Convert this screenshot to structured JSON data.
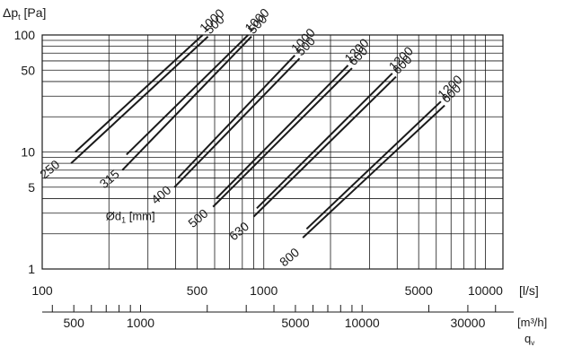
{
  "chart_data": {
    "type": "line",
    "x_scale": "log",
    "y_scale": "log",
    "xlim": [
      100,
      12000
    ],
    "ylim": [
      1,
      100
    ],
    "ylabel": "Δp",
    "ylabel_sub": "t",
    "ylabel_unit": " [Pa]",
    "xlabel": "[l/s]",
    "secondary_xlabel": "[m³/h]",
    "secondary_xsymbol": "q",
    "secondary_xsymbol_sub": "v",
    "x_ticks": [
      {
        "value": 100,
        "label": "100"
      },
      {
        "value": 500,
        "label": "500"
      },
      {
        "value": 1000,
        "label": "1000"
      },
      {
        "value": 5000,
        "label": "5000"
      },
      {
        "value": 10000,
        "label": "10000"
      }
    ],
    "y_ticks": [
      {
        "value": 1,
        "label": "1"
      },
      {
        "value": 5,
        "label": "5"
      },
      {
        "value": 10,
        "label": "10"
      },
      {
        "value": 50,
        "label": "50"
      },
      {
        "value": 100,
        "label": "100"
      }
    ],
    "secondary_x_ticks": [
      {
        "value": 500,
        "label": "500"
      },
      {
        "value": 1000,
        "label": "1000"
      },
      {
        "value": 5000,
        "label": "5000"
      },
      {
        "value": 10000,
        "label": "10000"
      },
      {
        "value": 30000,
        "label": "30000"
      }
    ],
    "secondary_minor_ticks": [
      400,
      600,
      700,
      800,
      900,
      2000,
      3000,
      4000,
      6000,
      7000,
      8000,
      9000,
      20000,
      40000
    ],
    "grid": true,
    "annotation": {
      "text": "Ød",
      "sub": "1",
      "suffix": " [mm]",
      "x": 440,
      "y": 2.8
    },
    "series": [
      {
        "name": "250",
        "label_x": 121,
        "label_y": 7.6,
        "lines": [
          {
            "label": "1000",
            "x": [
              141,
              530
            ],
            "y": [
              10,
              100
            ]
          },
          {
            "label": "500",
            "x": [
              135,
              560
            ],
            "y": [
              8,
              97
            ]
          }
        ]
      },
      {
        "name": "315",
        "label_x": 225,
        "label_y": 6.3,
        "lines": [
          {
            "label": "1000",
            "x": [
              240,
              850
            ],
            "y": [
              9.5,
              100
            ]
          },
          {
            "label": "500",
            "x": [
              230,
              880
            ],
            "y": [
              7,
              97
            ]
          }
        ]
      },
      {
        "name": "400",
        "label_x": 385,
        "label_y": 4.6,
        "lines": [
          {
            "label": "1000",
            "x": [
              410,
              1380
            ],
            "y": [
              6,
              67
            ]
          },
          {
            "label": "500",
            "x": [
              395,
              1450
            ],
            "y": [
              5,
              63
            ]
          }
        ]
      },
      {
        "name": "500",
        "label_x": 565,
        "label_y": 2.9,
        "lines": [
          {
            "label": "1200",
            "x": [
              610,
              2400
            ],
            "y": [
              4,
              55
            ]
          },
          {
            "label": "600",
            "x": [
              590,
              2500
            ],
            "y": [
              3.4,
              52
            ]
          }
        ]
      },
      {
        "name": "630",
        "label_x": 865,
        "label_y": 2.25,
        "lines": [
          {
            "label": "1200",
            "x": [
              930,
              3800
            ],
            "y": [
              3.3,
              47
            ]
          },
          {
            "label": "600",
            "x": [
              900,
              3950
            ],
            "y": [
              2.8,
              44
            ]
          }
        ]
      },
      {
        "name": "800",
        "label_x": 1460,
        "label_y": 1.35,
        "lines": [
          {
            "label": "1200",
            "x": [
              1560,
              6300
            ],
            "y": [
              2.2,
              27
            ]
          },
          {
            "label": "600",
            "x": [
              1500,
              6550
            ],
            "y": [
              1.85,
              25
            ]
          }
        ]
      }
    ]
  }
}
